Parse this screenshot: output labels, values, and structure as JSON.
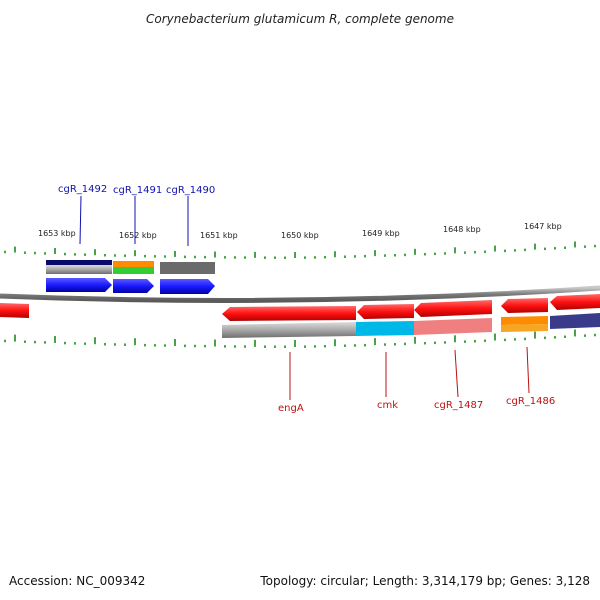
{
  "title": "Corynebacterium glutamicum R, complete genome",
  "ticks": [
    "1653 kbp",
    "1652 kbp",
    "1651 kbp",
    "1650 kbp",
    "1649 kbp",
    "1648 kbp",
    "1647 kbp"
  ],
  "genes_forward": [
    "cgR_1492",
    "cgR_1491",
    "cgR_1490"
  ],
  "genes_reverse": [
    "engA",
    "cmk",
    "cgR_1487",
    "cgR_1486"
  ],
  "footer": {
    "accession": "Accession: NC_009342",
    "summary": "Topology: circular; Length: 3,314,179 bp; Genes: 3,128"
  },
  "colors": {
    "forward_gene": "#1a1aff",
    "reverse_gene": "#ff1111",
    "backbone": "#8c8c8c",
    "tick": "#1a8a1a",
    "label_forward": "#1010b0",
    "label_reverse": "#c01010"
  }
}
